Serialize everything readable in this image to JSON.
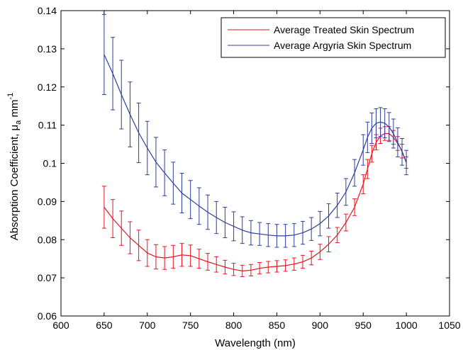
{
  "chart_data": {
    "type": "line",
    "xlabel": "Wavelength (nm)",
    "ylabel_main": "Absorption Coefficient, μ",
    "ylabel_sub": "a",
    "ylabel_unit": " mm",
    "ylabel_sup": "-1",
    "xlim": [
      600,
      1050
    ],
    "ylim": [
      0.06,
      0.14
    ],
    "xticks": [
      600,
      650,
      700,
      750,
      800,
      850,
      900,
      950,
      1000,
      1050
    ],
    "yticks": [
      0.06,
      0.07,
      0.08,
      0.09,
      0.1,
      0.11,
      0.12,
      0.13,
      0.14
    ],
    "xtick_labels": [
      "600",
      "650",
      "700",
      "750",
      "800",
      "850",
      "900",
      "950",
      "1000",
      "1050"
    ],
    "ytick_labels": [
      "0.06",
      "0.07",
      "0.08",
      "0.09",
      "0.1",
      "0.11",
      "0.12",
      "0.13",
      "0.14"
    ],
    "grid": false,
    "legend_position": "top-right",
    "series": [
      {
        "name": "Average Treated Skin Spectrum",
        "color": "#e8141e",
        "x": [
          650,
          660,
          670,
          680,
          690,
          700,
          710,
          720,
          730,
          740,
          750,
          760,
          770,
          780,
          790,
          800,
          810,
          820,
          830,
          840,
          850,
          860,
          870,
          880,
          890,
          900,
          910,
          920,
          930,
          940,
          950,
          955,
          960,
          965,
          970,
          975,
          980,
          985,
          990,
          995,
          1000
        ],
        "y": [
          0.0885,
          0.0855,
          0.083,
          0.0805,
          0.0785,
          0.0765,
          0.0755,
          0.0752,
          0.0755,
          0.076,
          0.0758,
          0.075,
          0.0742,
          0.0735,
          0.0728,
          0.0722,
          0.0718,
          0.072,
          0.0725,
          0.0728,
          0.073,
          0.0732,
          0.0736,
          0.0742,
          0.0752,
          0.0768,
          0.0788,
          0.0812,
          0.0845,
          0.0885,
          0.0945,
          0.0985,
          0.1025,
          0.1055,
          0.1072,
          0.1078,
          0.1078,
          0.1068,
          0.1052,
          0.1032,
          0.1002
        ],
        "err": [
          0.0055,
          0.005,
          0.0045,
          0.0042,
          0.004,
          0.0035,
          0.0032,
          0.003,
          0.003,
          0.003,
          0.0028,
          0.0025,
          0.0022,
          0.002,
          0.0018,
          0.0016,
          0.0015,
          0.0015,
          0.0015,
          0.0015,
          0.0015,
          0.0015,
          0.0016,
          0.0017,
          0.0018,
          0.002,
          0.002,
          0.002,
          0.0022,
          0.0022,
          0.0025,
          0.0025,
          0.0022,
          0.002,
          0.002,
          0.0018,
          0.0018,
          0.0018,
          0.0018,
          0.0018,
          0.0015
        ]
      },
      {
        "name": "Average Argyria Skin Spectrum",
        "color": "#2b3f9a",
        "x": [
          650,
          660,
          670,
          680,
          690,
          700,
          710,
          720,
          730,
          740,
          750,
          760,
          770,
          780,
          790,
          800,
          810,
          820,
          830,
          840,
          850,
          860,
          870,
          880,
          890,
          900,
          910,
          920,
          930,
          940,
          950,
          955,
          960,
          965,
          970,
          975,
          980,
          985,
          990,
          995,
          1000
        ],
        "y": [
          0.1285,
          0.1235,
          0.118,
          0.1128,
          0.108,
          0.104,
          0.1003,
          0.0975,
          0.0948,
          0.0922,
          0.0905,
          0.0888,
          0.0872,
          0.0858,
          0.0845,
          0.0835,
          0.0825,
          0.0818,
          0.0815,
          0.0812,
          0.081,
          0.081,
          0.0812,
          0.0818,
          0.0828,
          0.0842,
          0.0862,
          0.089,
          0.0925,
          0.0975,
          0.1035,
          0.1068,
          0.1092,
          0.1105,
          0.1108,
          0.1105,
          0.1095,
          0.1078,
          0.1055,
          0.103,
          0.1002
        ],
        "err": [
          0.0105,
          0.0095,
          0.009,
          0.0085,
          0.0078,
          0.007,
          0.0065,
          0.006,
          0.0055,
          0.0052,
          0.005,
          0.0048,
          0.0045,
          0.0042,
          0.004,
          0.0038,
          0.0035,
          0.0032,
          0.003,
          0.003,
          0.003,
          0.003,
          0.003,
          0.003,
          0.003,
          0.0032,
          0.0032,
          0.0032,
          0.0035,
          0.0035,
          0.004,
          0.004,
          0.004,
          0.0038,
          0.0038,
          0.0038,
          0.0038,
          0.0038,
          0.0038,
          0.0035,
          0.0032
        ]
      }
    ]
  }
}
